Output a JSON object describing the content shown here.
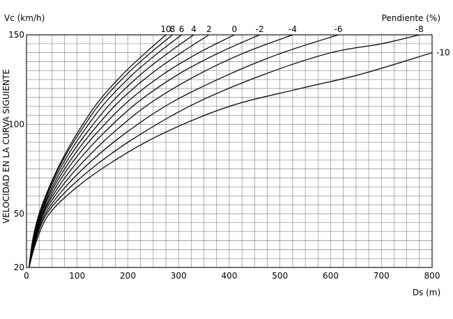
{
  "chart_data": {
    "type": "line",
    "title": "",
    "xlabel": "Ds (m)",
    "ylabel": "VELOCIDAD EN LA CURVA SIGUIENTE",
    "y_unit_label": "Vc (km/h)",
    "series_axis_label": "Pendiente (%)",
    "xlim": [
      0,
      800
    ],
    "ylim": [
      20,
      150
    ],
    "x_ticks": [
      "0",
      "100",
      "200",
      "300",
      "400",
      "500",
      "600",
      "700",
      "800"
    ],
    "y_ticks": [
      "20",
      "50",
      "100",
      "150"
    ],
    "grid": true,
    "legend": "series labels at curve ends",
    "series": [
      {
        "name": "10",
        "points": [
          [
            5,
            20
          ],
          [
            12,
            35
          ],
          [
            25,
            50
          ],
          [
            45,
            65
          ],
          [
            70,
            80
          ],
          [
            100,
            95
          ],
          [
            140,
            112
          ],
          [
            190,
            128
          ],
          [
            235,
            140
          ],
          [
            275,
            150
          ]
        ]
      },
      {
        "name": "8",
        "points": [
          [
            5,
            20
          ],
          [
            12,
            35
          ],
          [
            25,
            50
          ],
          [
            46,
            65
          ],
          [
            72,
            80
          ],
          [
            104,
            95
          ],
          [
            146,
            112
          ],
          [
            198,
            128
          ],
          [
            245,
            140
          ],
          [
            288,
            150
          ]
        ]
      },
      {
        "name": "6",
        "points": [
          [
            5,
            20
          ],
          [
            13,
            35
          ],
          [
            27,
            50
          ],
          [
            48,
            65
          ],
          [
            76,
            80
          ],
          [
            110,
            95
          ],
          [
            155,
            112
          ],
          [
            210,
            128
          ],
          [
            260,
            140
          ],
          [
            306,
            150
          ]
        ]
      },
      {
        "name": "4",
        "points": [
          [
            5,
            20
          ],
          [
            13,
            35
          ],
          [
            28,
            50
          ],
          [
            51,
            65
          ],
          [
            81,
            80
          ],
          [
            118,
            95
          ],
          [
            167,
            112
          ],
          [
            226,
            128
          ],
          [
            280,
            140
          ],
          [
            330,
            150
          ]
        ]
      },
      {
        "name": "2",
        "points": [
          [
            5,
            20
          ],
          [
            14,
            35
          ],
          [
            29,
            50
          ],
          [
            54,
            65
          ],
          [
            87,
            80
          ],
          [
            127,
            95
          ],
          [
            180,
            112
          ],
          [
            245,
            128
          ],
          [
            305,
            140
          ],
          [
            360,
            150
          ]
        ]
      },
      {
        "name": "0",
        "points": [
          [
            5,
            20
          ],
          [
            15,
            35
          ],
          [
            31,
            50
          ],
          [
            58,
            65
          ],
          [
            94,
            80
          ],
          [
            138,
            95
          ],
          [
            197,
            112
          ],
          [
            270,
            128
          ],
          [
            340,
            140
          ],
          [
            410,
            150
          ]
        ]
      },
      {
        "name": "-2",
        "points": [
          [
            5,
            20
          ],
          [
            15,
            35
          ],
          [
            32,
            50
          ],
          [
            63,
            65
          ],
          [
            103,
            80
          ],
          [
            152,
            95
          ],
          [
            218,
            112
          ],
          [
            300,
            128
          ],
          [
            380,
            140
          ],
          [
            460,
            150
          ]
        ]
      },
      {
        "name": "-4",
        "points": [
          [
            5,
            20
          ],
          [
            16,
            35
          ],
          [
            34,
            50
          ],
          [
            69,
            65
          ],
          [
            115,
            80
          ],
          [
            170,
            95
          ],
          [
            245,
            112
          ],
          [
            340,
            128
          ],
          [
            430,
            140
          ],
          [
            525,
            150
          ]
        ]
      },
      {
        "name": "-6",
        "points": [
          [
            5,
            20
          ],
          [
            17,
            35
          ],
          [
            37,
            50
          ],
          [
            77,
            65
          ],
          [
            130,
            80
          ],
          [
            195,
            95
          ],
          [
            285,
            112
          ],
          [
            400,
            128
          ],
          [
            505,
            140
          ],
          [
            615,
            150
          ]
        ]
      },
      {
        "name": "-8",
        "points": [
          [
            5,
            20
          ],
          [
            18,
            35
          ],
          [
            40,
            50
          ],
          [
            87,
            65
          ],
          [
            150,
            80
          ],
          [
            228,
            95
          ],
          [
            335,
            112
          ],
          [
            470,
            128
          ],
          [
            600,
            140
          ],
          [
            700,
            145
          ],
          [
            775,
            150
          ]
        ]
      },
      {
        "name": "-10",
        "points": [
          [
            5,
            20
          ],
          [
            20,
            35
          ],
          [
            45,
            50
          ],
          [
            100,
            65
          ],
          [
            175,
            80
          ],
          [
            270,
            95
          ],
          [
            400,
            110
          ],
          [
            540,
            120
          ],
          [
            660,
            128
          ],
          [
            800,
            140
          ]
        ]
      }
    ]
  }
}
